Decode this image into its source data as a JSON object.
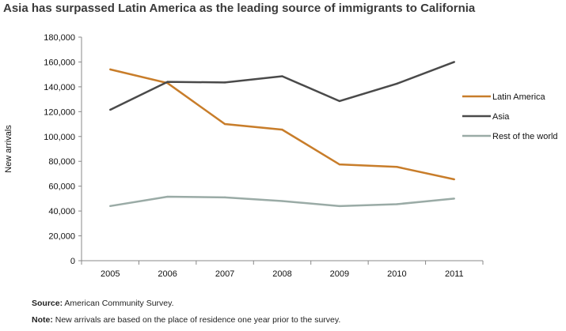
{
  "chart_data": {
    "type": "line",
    "title": "Asia has surpassed Latin America as the leading source of immigrants to California",
    "xlabel": "",
    "ylabel": "New arrivals",
    "categories": [
      "2005",
      "2006",
      "2007",
      "2008",
      "2009",
      "2010",
      "2011"
    ],
    "ylim": [
      0,
      180000
    ],
    "yticks": [
      "0",
      "20,000",
      "40,000",
      "60,000",
      "80,000",
      "100,000",
      "120,000",
      "140,000",
      "160,000",
      "180,000"
    ],
    "grid": false,
    "legend_placement": "right",
    "series": [
      {
        "name": "Latin America",
        "color": "#c87d2a",
        "values": [
          154000,
          143000,
          110000,
          105500,
          77500,
          75500,
          65500
        ]
      },
      {
        "name": "Asia",
        "color": "#4a4a4a",
        "values": [
          121500,
          144000,
          143500,
          148500,
          128500,
          142500,
          160000
        ]
      },
      {
        "name": "Rest of the world",
        "color": "#9aaba6",
        "values": [
          44000,
          51500,
          51000,
          48000,
          44000,
          45500,
          50000
        ]
      }
    ]
  },
  "footer": {
    "source_label": "Source:",
    "source_text": " American Community Survey.",
    "note_label": "Note:",
    "note_text": " New arrivals are based on the place of residence one year prior to the survey."
  }
}
